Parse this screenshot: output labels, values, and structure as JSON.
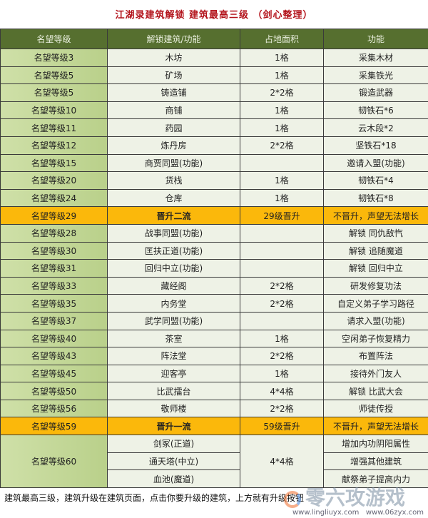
{
  "title": "江湖录建筑解锁 建筑最高三级 （剑心整理）",
  "headers": [
    "名望等级",
    "解锁建筑/功能",
    "占地面积",
    "功能"
  ],
  "rows": [
    [
      "名望等级3",
      "木坊",
      "1格",
      "采集木材"
    ],
    [
      "名望等级5",
      "矿场",
      "1格",
      "采集铁光"
    ],
    [
      "名望等级5",
      "铸造铺",
      "2*2格",
      "锻造武器"
    ],
    [
      "名望等级10",
      "商铺",
      "1格",
      "韧铁石*6"
    ],
    [
      "名望等级11",
      "药园",
      "1格",
      "云木段*2"
    ],
    [
      "名望等级12",
      "炼丹房",
      "2*2格",
      "坚铁石*18"
    ],
    [
      "名望等级15",
      "商贾同盟(功能)",
      "",
      "邀请入盟(功能)"
    ],
    [
      "名望等级20",
      "货栈",
      "1格",
      "韧铁石*4"
    ],
    [
      "名望等级24",
      "仓库",
      "1格",
      "韧铁石*8"
    ],
    [
      "名望等级29",
      "晋升二流",
      "29级晋升",
      "不晋升，声望无法增长"
    ],
    [
      "名望等级28",
      "战事同盟(功能)",
      "",
      "解锁 同仇敌忾"
    ],
    [
      "名望等级30",
      "匡扶正道(功能)",
      "",
      "解锁 追随魔道"
    ],
    [
      "名望等级31",
      "回归中立(功能)",
      "",
      "解锁 回归中立"
    ],
    [
      "名望等级33",
      "藏经阁",
      "2*2格",
      "研发修复功法"
    ],
    [
      "名望等级35",
      "内务堂",
      "2*2格",
      "自定义弟子学习路径"
    ],
    [
      "名望等级37",
      "武学同盟(功能)",
      "",
      "请求入盟(功能)"
    ],
    [
      "名望等级40",
      "茶室",
      "1格",
      "空闲弟子恢复精力"
    ],
    [
      "名望等级43",
      "阵法堂",
      "2*2格",
      "布置阵法"
    ],
    [
      "名望等级45",
      "迎客亭",
      "1格",
      "接待外门友人"
    ],
    [
      "名望等级50",
      "比武擂台",
      "4*4格",
      "解锁 比武大会"
    ],
    [
      "名望等级56",
      "敬师楼",
      "2*2格",
      "师徒传授"
    ],
    [
      "名望等级59",
      "晋升一流",
      "59级晋升",
      "不晋升，声望无法增长"
    ]
  ],
  "final": {
    "level": "名望等级60",
    "area": "4*4格",
    "items": [
      [
        "剑冢(正道)",
        "增加内功阴阳属性"
      ],
      [
        "通天塔(中立)",
        "增强其他建筑"
      ],
      [
        "血池(魔道)",
        "献祭弟子提高内力"
      ]
    ]
  },
  "highlight_rows": [
    9,
    21
  ],
  "colors": {
    "header": "#566f2f",
    "highlight": "#fbb80b",
    "level_col": "#c4d99a",
    "title": "#b3131b"
  },
  "footer": "建筑最高三级，建筑升级在建筑页面，点击你要升级的建筑，上方就有升级按钮",
  "watermark": {
    "name": "零六攻游戏",
    "url": "www.lingliuyx.com   www.06zyx.com"
  }
}
